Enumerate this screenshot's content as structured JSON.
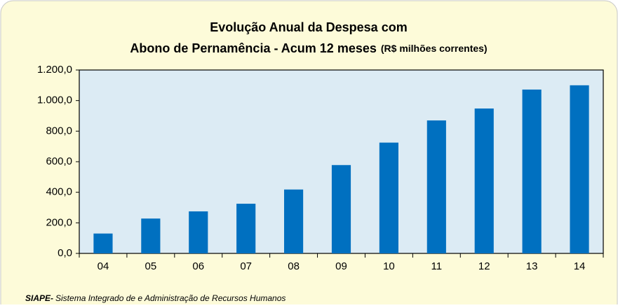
{
  "chart_data": {
    "type": "bar",
    "title": [
      "Evolução Anual da Despesa com",
      "Abono de Pernamência - Acum 12 meses"
    ],
    "subtitle": "(R$ milhões correntes)",
    "source_label": "SIAPE-",
    "source": "Sistema Integrado de e Administração de Recursos Humanos",
    "categories": [
      "04",
      "05",
      "06",
      "07",
      "08",
      "09",
      "10",
      "11",
      "12",
      "13",
      "14"
    ],
    "values": [
      130,
      228,
      275,
      325,
      418,
      578,
      725,
      870,
      948,
      1072,
      1100
    ],
    "color": "#0070c0",
    "ylim": [
      0,
      1200
    ],
    "yticks": [
      {
        "value": 0,
        "label": "0,0"
      },
      {
        "value": 200,
        "label": "200,0"
      },
      {
        "value": 400,
        "label": "400,0"
      },
      {
        "value": 600,
        "label": "600,0"
      },
      {
        "value": 800,
        "label": "800,0"
      },
      {
        "value": 1000,
        "label": "1.000,0"
      },
      {
        "value": 1200,
        "label": "1.200,0"
      }
    ],
    "grid": false
  }
}
